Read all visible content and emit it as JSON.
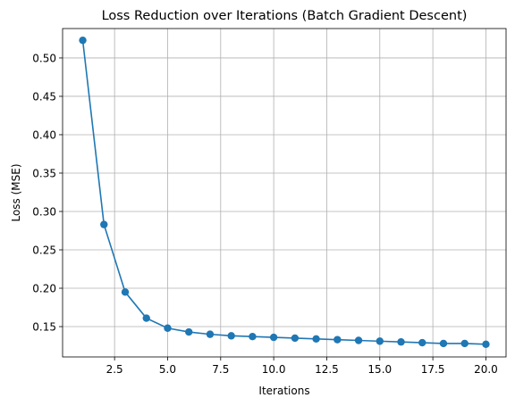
{
  "chart_data": {
    "type": "line",
    "title": "Loss Reduction over Iterations (Batch Gradient Descent)",
    "xlabel": "Iterations",
    "ylabel": "Loss (MSE)",
    "xlim": [
      0.05,
      20.95
    ],
    "ylim": [
      0.1105,
      0.5383
    ],
    "xticks": [
      2.5,
      5.0,
      7.5,
      10.0,
      12.5,
      15.0,
      17.5,
      20.0
    ],
    "xtick_labels": [
      "2.5",
      "5.0",
      "7.5",
      "10.0",
      "12.5",
      "15.0",
      "17.5",
      "20.0"
    ],
    "yticks": [
      0.15,
      0.2,
      0.25,
      0.3,
      0.35,
      0.4,
      0.45,
      0.5
    ],
    "ytick_labels": [
      "0.15",
      "0.20",
      "0.25",
      "0.30",
      "0.35",
      "0.40",
      "0.45",
      "0.50"
    ],
    "grid": true,
    "series": [
      {
        "color": "#1f77b4",
        "marker": "circle",
        "x": [
          1,
          2,
          3,
          4,
          5,
          6,
          7,
          8,
          9,
          10,
          11,
          12,
          13,
          14,
          15,
          16,
          17,
          18,
          19,
          20
        ],
        "y": [
          0.523,
          0.283,
          0.195,
          0.161,
          0.148,
          0.143,
          0.14,
          0.138,
          0.137,
          0.136,
          0.135,
          0.134,
          0.133,
          0.132,
          0.131,
          0.13,
          0.129,
          0.128,
          0.128,
          0.127
        ]
      }
    ]
  }
}
